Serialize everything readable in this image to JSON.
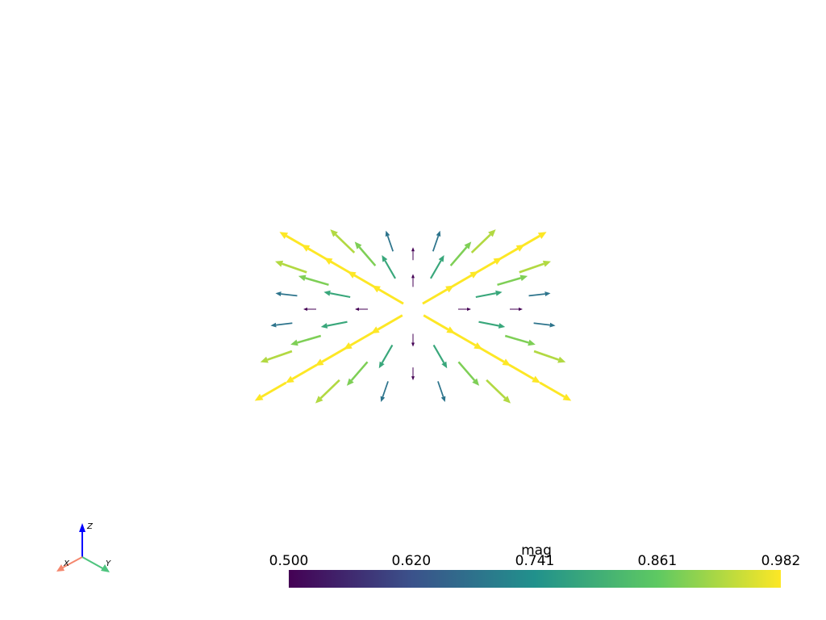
{
  "colorbar": {
    "title": "mag",
    "range": [
      0.5,
      0.982
    ],
    "ticks": [
      {
        "value": 0.5,
        "label": "0.500"
      },
      {
        "value": 0.62,
        "label": "0.620"
      },
      0.741,
      0.861,
      0.982
    ]
  },
  "axes_widget": {
    "x": "X",
    "y": "Y",
    "z": "Z"
  }
}
